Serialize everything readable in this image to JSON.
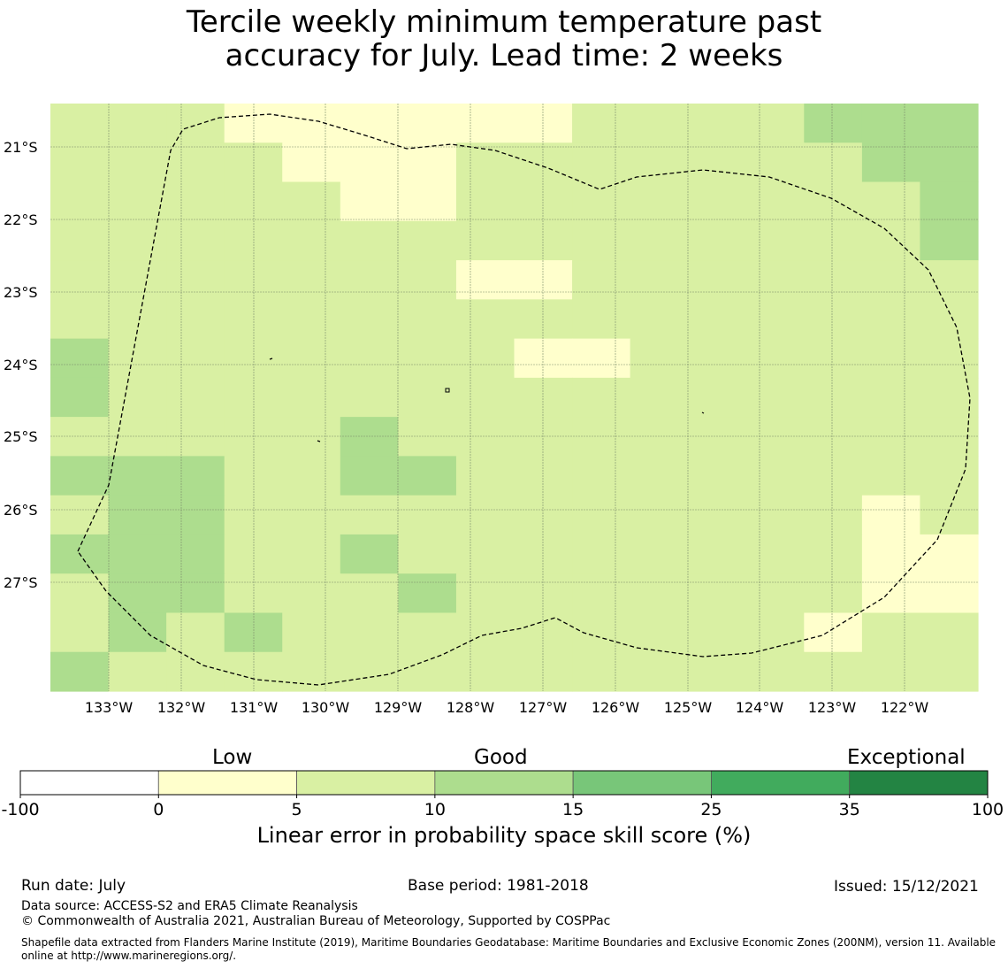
{
  "title": {
    "line1": "Tercile weekly minimum temperature past",
    "line2": "accuracy for July. Lead time: 2 weeks"
  },
  "map": {
    "lat_labels": [
      "21°S",
      "22°S",
      "23°S",
      "24°S",
      "25°S",
      "26°S",
      "27°S"
    ],
    "lon_labels": [
      "133°W",
      "132°W",
      "131°W",
      "130°W",
      "129°W",
      "128°W",
      "127°W",
      "126°W",
      "125°W",
      "124°W",
      "123°W",
      "122°W"
    ],
    "grid": {
      "columns": 16,
      "rows": 15,
      "default_category": "5-10",
      "cells": [
        {
          "row": 0,
          "col": 3,
          "category": "0-5"
        },
        {
          "row": 0,
          "col": 4,
          "category": "0-5"
        },
        {
          "row": 0,
          "col": 5,
          "category": "0-5"
        },
        {
          "row": 0,
          "col": 6,
          "category": "0-5"
        },
        {
          "row": 0,
          "col": 7,
          "category": "0-5"
        },
        {
          "row": 0,
          "col": 8,
          "category": "0-5"
        },
        {
          "row": 1,
          "col": 4,
          "category": "0-5"
        },
        {
          "row": 1,
          "col": 5,
          "category": "0-5"
        },
        {
          "row": 1,
          "col": 6,
          "category": "0-5"
        },
        {
          "row": 2,
          "col": 5,
          "category": "0-5"
        },
        {
          "row": 2,
          "col": 6,
          "category": "0-5"
        },
        {
          "row": 0,
          "col": 13,
          "category": "10-15"
        },
        {
          "row": 0,
          "col": 14,
          "category": "10-15"
        },
        {
          "row": 0,
          "col": 15,
          "category": "10-15"
        },
        {
          "row": 1,
          "col": 14,
          "category": "10-15"
        },
        {
          "row": 1,
          "col": 15,
          "category": "10-15"
        },
        {
          "row": 2,
          "col": 15,
          "category": "10-15"
        },
        {
          "row": 3,
          "col": 15,
          "category": "10-15"
        },
        {
          "row": 4,
          "col": 7,
          "category": "0-5"
        },
        {
          "row": 4,
          "col": 8,
          "category": "0-5"
        },
        {
          "row": 6,
          "col": 8,
          "category": "0-5"
        },
        {
          "row": 6,
          "col": 9,
          "category": "0-5"
        },
        {
          "row": 6,
          "col": 0,
          "category": "10-15"
        },
        {
          "row": 7,
          "col": 0,
          "category": "10-15"
        },
        {
          "row": 8,
          "col": 5,
          "category": "10-15"
        },
        {
          "row": 9,
          "col": 5,
          "category": "10-15"
        },
        {
          "row": 9,
          "col": 6,
          "category": "10-15"
        },
        {
          "row": 9,
          "col": 0,
          "category": "10-15"
        },
        {
          "row": 9,
          "col": 1,
          "category": "10-15"
        },
        {
          "row": 9,
          "col": 2,
          "category": "10-15"
        },
        {
          "row": 10,
          "col": 1,
          "category": "10-15"
        },
        {
          "row": 10,
          "col": 2,
          "category": "10-15"
        },
        {
          "row": 11,
          "col": 0,
          "category": "10-15"
        },
        {
          "row": 11,
          "col": 1,
          "category": "10-15"
        },
        {
          "row": 11,
          "col": 2,
          "category": "10-15"
        },
        {
          "row": 12,
          "col": 1,
          "category": "10-15"
        },
        {
          "row": 12,
          "col": 2,
          "category": "10-15"
        },
        {
          "row": 13,
          "col": 1,
          "category": "10-15"
        },
        {
          "row": 13,
          "col": 3,
          "category": "10-15"
        },
        {
          "row": 14,
          "col": 0,
          "category": "10-15"
        },
        {
          "row": 11,
          "col": 5,
          "category": "10-15"
        },
        {
          "row": 12,
          "col": 6,
          "category": "10-15"
        },
        {
          "row": 10,
          "col": 14,
          "category": "0-5"
        },
        {
          "row": 11,
          "col": 14,
          "category": "0-5"
        },
        {
          "row": 11,
          "col": 15,
          "category": "0-5"
        },
        {
          "row": 12,
          "col": 14,
          "category": "0-5"
        },
        {
          "row": 12,
          "col": 15,
          "category": "0-5"
        },
        {
          "row": 13,
          "col": 13,
          "category": "0-5"
        }
      ]
    }
  },
  "legend": {
    "categories": [
      {
        "range": "-100-0",
        "color": "#ffffff"
      },
      {
        "range": "0-5",
        "color": "#ffffcc"
      },
      {
        "range": "5-10",
        "color": "#d9f0a3"
      },
      {
        "range": "10-15",
        "color": "#addd8e"
      },
      {
        "range": "15-25",
        "color": "#78c679"
      },
      {
        "range": "25-35",
        "color": "#41ab5d"
      },
      {
        "range": "35-100",
        "color": "#238443"
      }
    ],
    "ticks": [
      "-100",
      "0",
      "5",
      "10",
      "15",
      "25",
      "35",
      "100"
    ],
    "word_low": "Low",
    "word_good": "Good",
    "word_exceptional": "Exceptional",
    "label": "Linear error in probability space skill score (%)"
  },
  "footer": {
    "run_date": "Run date: July",
    "base_period": "Base period: 1981-2018",
    "issued": "Issued: 15/12/2021",
    "data_source": "Data source: ACCESS-S2 and ERA5 Climate Reanalysis",
    "copyright": "© Commonwealth of Australia 2021, Australian Bureau of Meteorology, Supported by COSPPac",
    "shapefile": "Shapefile data extracted from Flanders Marine Institute (2019), Maritime Boundaries Geodatabase: Maritime Boundaries and Exclusive Economic Zones (200NM), version 11. Available online at http://www.marineregions.org/."
  }
}
